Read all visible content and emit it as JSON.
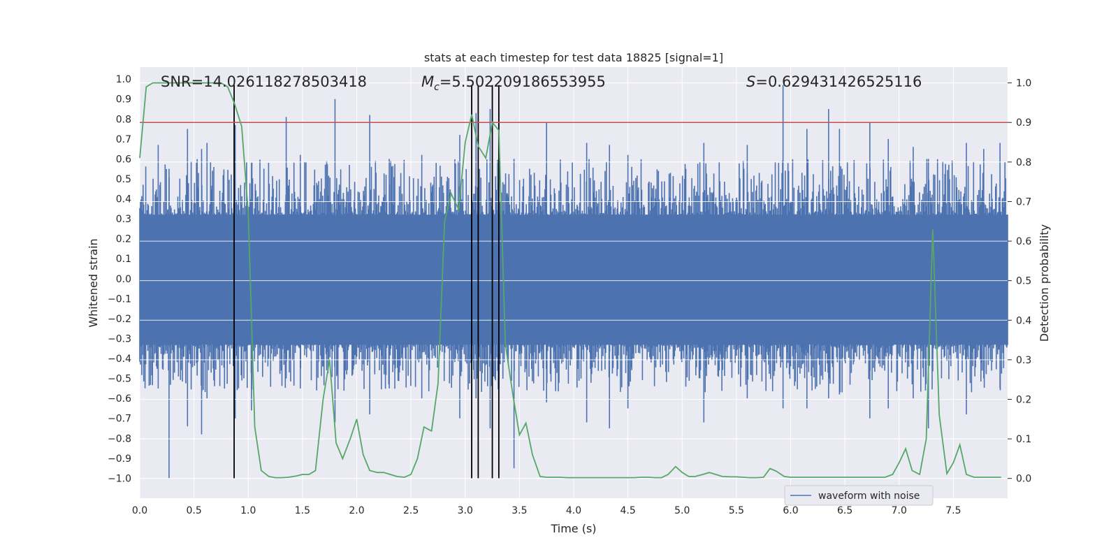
{
  "chart_data": {
    "type": "line",
    "title": "stats at each timestep for test data 18825 [signal=1]",
    "xlabel": "Time (s)",
    "ylabel": "Whitened strain",
    "ylabel_right": "Detection probability",
    "xlim": [
      0.0,
      8.0
    ],
    "ylim": [
      -1.1,
      1.06
    ],
    "ylim_right": [
      -0.05,
      1.04
    ],
    "xticks": [
      0.0,
      0.5,
      1.0,
      1.5,
      2.0,
      2.5,
      3.0,
      3.5,
      4.0,
      4.5,
      5.0,
      5.5,
      6.0,
      6.5,
      7.0,
      7.5
    ],
    "xtick_labels": [
      "0.0",
      "0.5",
      "1.0",
      "1.5",
      "2.0",
      "2.5",
      "3.0",
      "3.5",
      "4.0",
      "4.5",
      "5.0",
      "5.5",
      "6.0",
      "6.5",
      "7.0",
      "7.5"
    ],
    "yticks": [
      1.0,
      0.9,
      0.8,
      0.7,
      0.6,
      0.5,
      0.4,
      0.3,
      0.2,
      0.1,
      0.0,
      -0.1,
      -0.2,
      -0.3,
      -0.4,
      -0.5,
      -0.6,
      -0.7,
      -0.8,
      -0.9,
      -1.0
    ],
    "ytick_labels": [
      "1.0",
      "0.9",
      "0.8",
      "0.7",
      "0.6",
      "0.5",
      "0.4",
      "0.3",
      "0.2",
      "0.1",
      "0.0",
      "−0.1",
      "−0.2",
      "−0.3",
      "−0.4",
      "−0.5",
      "−0.6",
      "−0.7",
      "−0.8",
      "−0.9",
      "−1.0"
    ],
    "yticks_right": [
      1.0,
      0.9,
      0.8,
      0.7,
      0.6,
      0.5,
      0.4,
      0.3,
      0.2,
      0.1,
      0.0
    ],
    "ytick_labels_right": [
      "1.0",
      "0.9",
      "0.8",
      "0.7",
      "0.6",
      "0.5",
      "0.4",
      "0.3",
      "0.2",
      "0.1",
      "0.0"
    ],
    "annotations": {
      "snr": "SNR=14.026118278503418",
      "mc_symbol": "M",
      "mc_subscript": "c",
      "mc_value": "=5.502209186553955",
      "s_symbol": "S",
      "s_value": "=0.629431426525116"
    },
    "threshold": {
      "value": 0.9,
      "axis": "right",
      "color": "#c44e52"
    },
    "vlines": [
      0.87,
      3.06,
      3.12,
      3.25,
      3.31
    ],
    "waveform_envelope": {
      "name": "waveform with noise",
      "color": "#4c72b0",
      "dense_band": [
        -0.33,
        0.32
      ],
      "spikes": [
        [
          0.17,
          0.67,
          -0.55
        ],
        [
          0.27,
          0.55,
          -1.0
        ],
        [
          0.44,
          0.75,
          -0.74
        ],
        [
          0.57,
          0.65,
          -0.78
        ],
        [
          0.62,
          0.68,
          -0.6
        ],
        [
          0.88,
          0.77,
          -0.7
        ],
        [
          1.03,
          0.58,
          -0.66
        ],
        [
          1.35,
          0.81,
          -0.5
        ],
        [
          1.48,
          0.62,
          -0.55
        ],
        [
          1.8,
          0.9,
          -0.72
        ],
        [
          2.12,
          0.82,
          -0.68
        ],
        [
          2.3,
          0.6,
          -0.55
        ],
        [
          2.6,
          0.62,
          -0.6
        ],
        [
          2.95,
          0.72,
          -0.7
        ],
        [
          3.1,
          0.83,
          -0.6
        ],
        [
          3.23,
          0.85,
          -0.75
        ],
        [
          3.31,
          0.85,
          -0.55
        ],
        [
          3.45,
          0.6,
          -0.95
        ],
        [
          3.75,
          0.78,
          -0.62
        ],
        [
          4.12,
          0.68,
          -0.72
        ],
        [
          4.33,
          0.67,
          -0.75
        ],
        [
          4.5,
          0.62,
          -0.65
        ],
        [
          5.2,
          0.68,
          -0.72
        ],
        [
          5.6,
          0.67,
          -0.6
        ],
        [
          5.93,
          0.97,
          -0.65
        ],
        [
          6.15,
          0.75,
          -0.65
        ],
        [
          6.35,
          0.85,
          -0.6
        ],
        [
          6.45,
          0.75,
          -0.58
        ],
        [
          6.73,
          0.78,
          -0.7
        ],
        [
          6.9,
          0.7,
          -0.65
        ],
        [
          7.13,
          0.66,
          -0.6
        ],
        [
          7.27,
          0.6,
          -0.75
        ],
        [
          7.62,
          0.68,
          -0.68
        ],
        [
          7.78,
          0.65,
          -0.5
        ],
        [
          7.93,
          0.68,
          -0.55
        ]
      ]
    },
    "probability": {
      "name": "detection probability",
      "color": "#55a868",
      "x": [
        0.0,
        0.06,
        0.12,
        0.18,
        0.25,
        0.31,
        0.37,
        0.44,
        0.5,
        0.56,
        0.62,
        0.69,
        0.75,
        0.81,
        0.87,
        0.94,
        1.0,
        1.06,
        1.12,
        1.19,
        1.25,
        1.31,
        1.37,
        1.44,
        1.5,
        1.56,
        1.62,
        1.69,
        1.75,
        1.81,
        1.87,
        1.94,
        2.0,
        2.06,
        2.12,
        2.19,
        2.25,
        2.31,
        2.37,
        2.44,
        2.5,
        2.56,
        2.62,
        2.69,
        2.75,
        2.81,
        2.87,
        2.94,
        3.0,
        3.06,
        3.12,
        3.19,
        3.25,
        3.31,
        3.37,
        3.44,
        3.5,
        3.56,
        3.62,
        3.69,
        3.75,
        3.81,
        3.87,
        3.94,
        4.0,
        4.06,
        4.12,
        4.19,
        4.25,
        4.31,
        4.37,
        4.44,
        4.5,
        4.56,
        4.62,
        4.69,
        4.75,
        4.81,
        4.87,
        4.94,
        5.0,
        5.06,
        5.12,
        5.19,
        5.25,
        5.31,
        5.37,
        5.44,
        5.5,
        5.56,
        5.62,
        5.69,
        5.75,
        5.81,
        5.87,
        5.94,
        6.0,
        6.06,
        6.12,
        6.19,
        6.25,
        6.31,
        6.37,
        6.44,
        6.5,
        6.56,
        6.62,
        6.69,
        6.75,
        6.81,
        6.87,
        6.94,
        7.0,
        7.06,
        7.12,
        7.19,
        7.25,
        7.31,
        7.37,
        7.44,
        7.5,
        7.56,
        7.62,
        7.69,
        7.75,
        7.81,
        7.87,
        7.94
      ],
      "y": [
        0.81,
        0.99,
        1.0,
        1.0,
        1.0,
        1.0,
        1.0,
        1.0,
        1.0,
        1.0,
        1.0,
        1.0,
        1.0,
        0.99,
        0.95,
        0.89,
        0.67,
        0.13,
        0.02,
        0.005,
        0.002,
        0.002,
        0.003,
        0.006,
        0.01,
        0.01,
        0.02,
        0.2,
        0.3,
        0.09,
        0.05,
        0.1,
        0.15,
        0.06,
        0.02,
        0.015,
        0.015,
        0.01,
        0.005,
        0.003,
        0.01,
        0.05,
        0.13,
        0.12,
        0.24,
        0.65,
        0.72,
        0.68,
        0.85,
        0.92,
        0.84,
        0.81,
        0.9,
        0.88,
        0.34,
        0.21,
        0.11,
        0.14,
        0.06,
        0.005,
        0.003,
        0.003,
        0.003,
        0.002,
        0.002,
        0.002,
        0.002,
        0.002,
        0.002,
        0.002,
        0.002,
        0.002,
        0.002,
        0.002,
        0.003,
        0.003,
        0.002,
        0.002,
        0.01,
        0.03,
        0.015,
        0.005,
        0.005,
        0.01,
        0.015,
        0.01,
        0.005,
        0.004,
        0.004,
        0.003,
        0.002,
        0.002,
        0.003,
        0.025,
        0.018,
        0.005,
        0.003,
        0.003,
        0.003,
        0.003,
        0.003,
        0.003,
        0.003,
        0.003,
        0.003,
        0.003,
        0.003,
        0.003,
        0.003,
        0.003,
        0.003,
        0.01,
        0.04,
        0.075,
        0.02,
        0.01,
        0.1,
        0.63,
        0.16,
        0.012,
        0.04,
        0.085,
        0.01,
        0.003,
        0.003,
        0.003,
        0.003,
        0.003
      ]
    },
    "legend": {
      "label": "waveform with noise",
      "placement": "lower-right"
    },
    "grid": true
  }
}
